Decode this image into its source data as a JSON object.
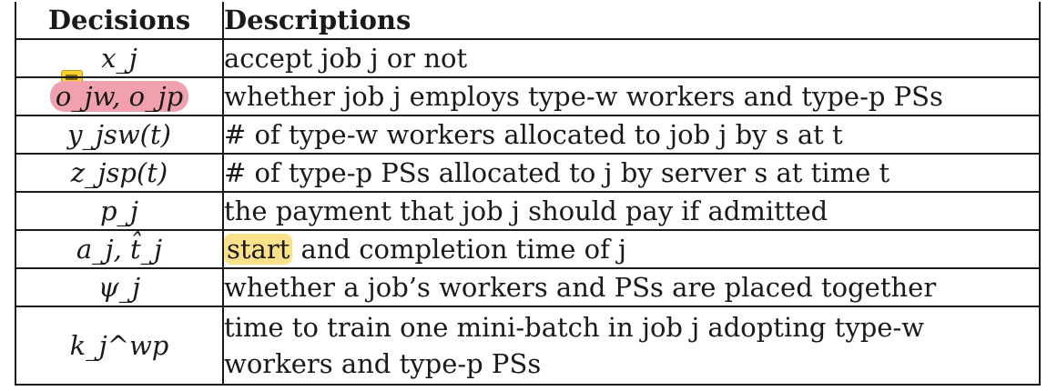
{
  "table": {
    "headers": {
      "decisions": "Decisions",
      "descriptions": "Descriptions"
    },
    "rows": [
      {
        "symbol": "x_j",
        "description": "accept job j or not"
      },
      {
        "symbol": "o_jw, o_jp",
        "description": "whether job j employs type-w workers and type-p PSs"
      },
      {
        "symbol": "y_jsw(t)",
        "description": "# of type-w workers allocated to job j by s at t"
      },
      {
        "symbol": "z_jsp(t)",
        "description": "# of type-p PSs allocated to j by server s at time t"
      },
      {
        "symbol": "p_j",
        "description": "the payment that job j should pay if admitted"
      },
      {
        "symbol": "a_j, t̂_j",
        "description": "start and completion time of j"
      },
      {
        "symbol": "ψ_j",
        "description": "whether a job’s workers and PSs are placed together"
      },
      {
        "symbol": "k_j^wp",
        "description": "time to train one mini-batch in job j adopting type-w workers and type-p PSs"
      }
    ]
  },
  "annotations": {
    "note_icon": "comment-note-icon",
    "highlight_red_color": "#f1a0ad",
    "highlight_yellow_color": "#fbe28a",
    "highlighted_word": "start"
  }
}
